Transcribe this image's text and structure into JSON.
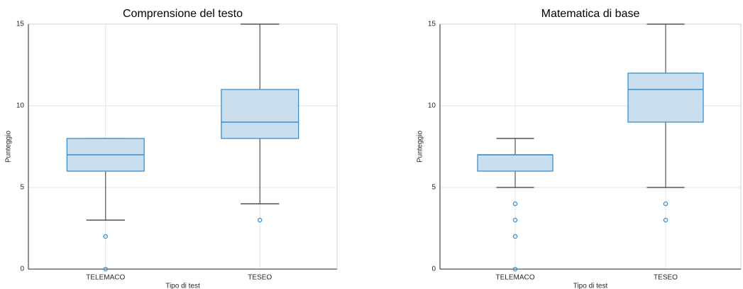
{
  "chart_data": [
    {
      "type": "box",
      "title": "Comprensione del testo",
      "xlabel": "Tipo di test",
      "ylabel": "Punteggio",
      "categories": [
        "TELEMACO",
        "TESEO"
      ],
      "boxes": [
        {
          "min": 3,
          "q1": 6,
          "median": 7,
          "q3": 8,
          "max": 8,
          "outliers": [
            2,
            0
          ]
        },
        {
          "min": 4,
          "q1": 8,
          "median": 9,
          "q3": 11,
          "max": 15,
          "outliers": [
            3
          ]
        }
      ],
      "color": "#3a8fd0",
      "ylim": [
        0,
        15
      ],
      "yticks": [
        0,
        5,
        10,
        15
      ],
      "grid": true
    },
    {
      "type": "box",
      "title": "Matematica di base",
      "xlabel": "Tipo di test",
      "ylabel": "Punteggio",
      "categories": [
        "TELEMACO",
        "TESEO"
      ],
      "boxes": [
        {
          "min": 5,
          "q1": 6,
          "median": 7,
          "q3": 7,
          "max": 8,
          "outliers": [
            4,
            3,
            2,
            0
          ]
        },
        {
          "min": 5,
          "q1": 9,
          "median": 11,
          "q3": 12,
          "max": 15,
          "outliers": [
            4,
            3
          ]
        }
      ],
      "color": "#3a8fd0",
      "ylim": [
        0,
        15
      ],
      "yticks": [
        0,
        5,
        10,
        15
      ],
      "grid": true
    }
  ]
}
